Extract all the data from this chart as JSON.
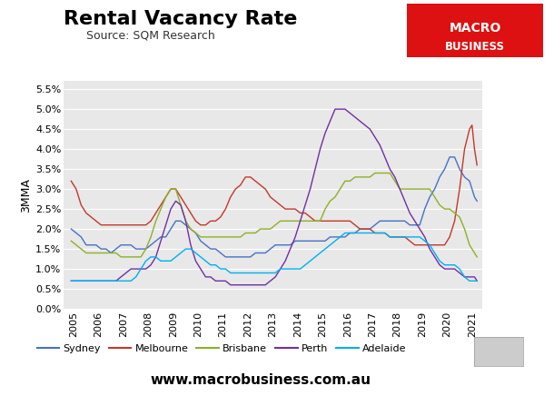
{
  "title": "Rental Vacancy Rate",
  "subtitle": "Source: SQM Research",
  "ylabel": "3MMA",
  "plot_bg": "#e8e8e8",
  "fig_bg": "#ffffff",
  "title_fontsize": 16,
  "subtitle_fontsize": 9,
  "ylabel_fontsize": 9,
  "tick_fontsize": 8,
  "website": "www.macrobusiness.com.au",
  "website_fontsize": 11,
  "colors": {
    "Sydney": "#4472c4",
    "Melbourne": "#c0392b",
    "Brisbane": "#8db026",
    "Perth": "#7030a0",
    "Adelaide": "#00b0f0"
  },
  "ylim": [
    0.0,
    0.057
  ],
  "yticks": [
    0.0,
    0.005,
    0.01,
    0.015,
    0.02,
    0.025,
    0.03,
    0.035,
    0.04,
    0.045,
    0.05,
    0.055
  ],
  "year_start": 2004.6,
  "year_end": 2021.4,
  "xticks": [
    2005,
    2006,
    2007,
    2008,
    2009,
    2010,
    2011,
    2012,
    2013,
    2014,
    2015,
    2016,
    2017,
    2018,
    2019,
    2020,
    2021
  ],
  "series": [
    "Sydney",
    "Melbourne",
    "Brisbane",
    "Perth",
    "Adelaide"
  ],
  "Sydney": [
    [
      2004.9,
      0.02
    ],
    [
      2005.1,
      0.019
    ],
    [
      2005.3,
      0.018
    ],
    [
      2005.5,
      0.016
    ],
    [
      2005.7,
      0.016
    ],
    [
      2005.9,
      0.016
    ],
    [
      2006.1,
      0.015
    ],
    [
      2006.3,
      0.015
    ],
    [
      2006.5,
      0.014
    ],
    [
      2006.7,
      0.015
    ],
    [
      2006.9,
      0.016
    ],
    [
      2007.1,
      0.016
    ],
    [
      2007.3,
      0.016
    ],
    [
      2007.5,
      0.015
    ],
    [
      2007.7,
      0.015
    ],
    [
      2007.9,
      0.015
    ],
    [
      2008.1,
      0.016
    ],
    [
      2008.3,
      0.017
    ],
    [
      2008.5,
      0.018
    ],
    [
      2008.7,
      0.018
    ],
    [
      2008.9,
      0.02
    ],
    [
      2009.1,
      0.022
    ],
    [
      2009.3,
      0.022
    ],
    [
      2009.5,
      0.021
    ],
    [
      2009.7,
      0.02
    ],
    [
      2009.9,
      0.019
    ],
    [
      2010.1,
      0.017
    ],
    [
      2010.3,
      0.016
    ],
    [
      2010.5,
      0.015
    ],
    [
      2010.7,
      0.015
    ],
    [
      2010.9,
      0.014
    ],
    [
      2011.1,
      0.013
    ],
    [
      2011.3,
      0.013
    ],
    [
      2011.5,
      0.013
    ],
    [
      2011.7,
      0.013
    ],
    [
      2011.9,
      0.013
    ],
    [
      2012.1,
      0.013
    ],
    [
      2012.3,
      0.014
    ],
    [
      2012.5,
      0.014
    ],
    [
      2012.7,
      0.014
    ],
    [
      2012.9,
      0.015
    ],
    [
      2013.1,
      0.016
    ],
    [
      2013.3,
      0.016
    ],
    [
      2013.5,
      0.016
    ],
    [
      2013.7,
      0.016
    ],
    [
      2013.9,
      0.017
    ],
    [
      2014.1,
      0.017
    ],
    [
      2014.3,
      0.017
    ],
    [
      2014.5,
      0.017
    ],
    [
      2014.7,
      0.017
    ],
    [
      2014.9,
      0.017
    ],
    [
      2015.1,
      0.017
    ],
    [
      2015.3,
      0.018
    ],
    [
      2015.5,
      0.018
    ],
    [
      2015.7,
      0.018
    ],
    [
      2015.9,
      0.018
    ],
    [
      2016.1,
      0.019
    ],
    [
      2016.3,
      0.019
    ],
    [
      2016.5,
      0.02
    ],
    [
      2016.7,
      0.02
    ],
    [
      2016.9,
      0.02
    ],
    [
      2017.1,
      0.021
    ],
    [
      2017.3,
      0.022
    ],
    [
      2017.5,
      0.022
    ],
    [
      2017.7,
      0.022
    ],
    [
      2017.9,
      0.022
    ],
    [
      2018.1,
      0.022
    ],
    [
      2018.3,
      0.022
    ],
    [
      2018.5,
      0.021
    ],
    [
      2018.7,
      0.021
    ],
    [
      2018.9,
      0.021
    ],
    [
      2019.1,
      0.025
    ],
    [
      2019.3,
      0.028
    ],
    [
      2019.5,
      0.03
    ],
    [
      2019.7,
      0.033
    ],
    [
      2019.9,
      0.035
    ],
    [
      2020.1,
      0.038
    ],
    [
      2020.3,
      0.038
    ],
    [
      2020.5,
      0.035
    ],
    [
      2020.7,
      0.033
    ],
    [
      2020.9,
      0.032
    ],
    [
      2021.0,
      0.03
    ],
    [
      2021.1,
      0.028
    ],
    [
      2021.2,
      0.027
    ]
  ],
  "Melbourne": [
    [
      2004.9,
      0.032
    ],
    [
      2005.1,
      0.03
    ],
    [
      2005.3,
      0.026
    ],
    [
      2005.5,
      0.024
    ],
    [
      2005.7,
      0.023
    ],
    [
      2005.9,
      0.022
    ],
    [
      2006.1,
      0.021
    ],
    [
      2006.3,
      0.021
    ],
    [
      2006.5,
      0.021
    ],
    [
      2006.7,
      0.021
    ],
    [
      2006.9,
      0.021
    ],
    [
      2007.1,
      0.021
    ],
    [
      2007.3,
      0.021
    ],
    [
      2007.5,
      0.021
    ],
    [
      2007.7,
      0.021
    ],
    [
      2007.9,
      0.021
    ],
    [
      2008.1,
      0.022
    ],
    [
      2008.3,
      0.024
    ],
    [
      2008.5,
      0.026
    ],
    [
      2008.7,
      0.028
    ],
    [
      2008.9,
      0.03
    ],
    [
      2009.1,
      0.03
    ],
    [
      2009.3,
      0.028
    ],
    [
      2009.5,
      0.026
    ],
    [
      2009.7,
      0.024
    ],
    [
      2009.9,
      0.022
    ],
    [
      2010.1,
      0.021
    ],
    [
      2010.3,
      0.021
    ],
    [
      2010.5,
      0.022
    ],
    [
      2010.7,
      0.022
    ],
    [
      2010.9,
      0.023
    ],
    [
      2011.1,
      0.025
    ],
    [
      2011.3,
      0.028
    ],
    [
      2011.5,
      0.03
    ],
    [
      2011.7,
      0.031
    ],
    [
      2011.9,
      0.033
    ],
    [
      2012.1,
      0.033
    ],
    [
      2012.3,
      0.032
    ],
    [
      2012.5,
      0.031
    ],
    [
      2012.7,
      0.03
    ],
    [
      2012.9,
      0.028
    ],
    [
      2013.1,
      0.027
    ],
    [
      2013.3,
      0.026
    ],
    [
      2013.5,
      0.025
    ],
    [
      2013.7,
      0.025
    ],
    [
      2013.9,
      0.025
    ],
    [
      2014.1,
      0.024
    ],
    [
      2014.3,
      0.024
    ],
    [
      2014.5,
      0.023
    ],
    [
      2014.7,
      0.022
    ],
    [
      2014.9,
      0.022
    ],
    [
      2015.1,
      0.022
    ],
    [
      2015.3,
      0.022
    ],
    [
      2015.5,
      0.022
    ],
    [
      2015.7,
      0.022
    ],
    [
      2015.9,
      0.022
    ],
    [
      2016.1,
      0.022
    ],
    [
      2016.3,
      0.021
    ],
    [
      2016.5,
      0.02
    ],
    [
      2016.7,
      0.02
    ],
    [
      2016.9,
      0.02
    ],
    [
      2017.1,
      0.019
    ],
    [
      2017.3,
      0.019
    ],
    [
      2017.5,
      0.019
    ],
    [
      2017.7,
      0.018
    ],
    [
      2017.9,
      0.018
    ],
    [
      2018.1,
      0.018
    ],
    [
      2018.3,
      0.018
    ],
    [
      2018.5,
      0.017
    ],
    [
      2018.7,
      0.016
    ],
    [
      2018.9,
      0.016
    ],
    [
      2019.1,
      0.016
    ],
    [
      2019.3,
      0.016
    ],
    [
      2019.5,
      0.016
    ],
    [
      2019.7,
      0.016
    ],
    [
      2019.9,
      0.016
    ],
    [
      2020.1,
      0.018
    ],
    [
      2020.3,
      0.022
    ],
    [
      2020.5,
      0.03
    ],
    [
      2020.7,
      0.04
    ],
    [
      2020.9,
      0.045
    ],
    [
      2021.0,
      0.046
    ],
    [
      2021.1,
      0.04
    ],
    [
      2021.2,
      0.036
    ]
  ],
  "Brisbane": [
    [
      2004.9,
      0.017
    ],
    [
      2005.1,
      0.016
    ],
    [
      2005.3,
      0.015
    ],
    [
      2005.5,
      0.014
    ],
    [
      2005.7,
      0.014
    ],
    [
      2005.9,
      0.014
    ],
    [
      2006.1,
      0.014
    ],
    [
      2006.3,
      0.014
    ],
    [
      2006.5,
      0.014
    ],
    [
      2006.7,
      0.014
    ],
    [
      2006.9,
      0.013
    ],
    [
      2007.1,
      0.013
    ],
    [
      2007.3,
      0.013
    ],
    [
      2007.5,
      0.013
    ],
    [
      2007.7,
      0.013
    ],
    [
      2007.9,
      0.015
    ],
    [
      2008.1,
      0.018
    ],
    [
      2008.3,
      0.022
    ],
    [
      2008.5,
      0.025
    ],
    [
      2008.7,
      0.028
    ],
    [
      2008.9,
      0.03
    ],
    [
      2009.1,
      0.03
    ],
    [
      2009.3,
      0.026
    ],
    [
      2009.5,
      0.022
    ],
    [
      2009.7,
      0.02
    ],
    [
      2009.9,
      0.019
    ],
    [
      2010.1,
      0.018
    ],
    [
      2010.3,
      0.018
    ],
    [
      2010.5,
      0.018
    ],
    [
      2010.7,
      0.018
    ],
    [
      2010.9,
      0.018
    ],
    [
      2011.1,
      0.018
    ],
    [
      2011.3,
      0.018
    ],
    [
      2011.5,
      0.018
    ],
    [
      2011.7,
      0.018
    ],
    [
      2011.9,
      0.019
    ],
    [
      2012.1,
      0.019
    ],
    [
      2012.3,
      0.019
    ],
    [
      2012.5,
      0.02
    ],
    [
      2012.7,
      0.02
    ],
    [
      2012.9,
      0.02
    ],
    [
      2013.1,
      0.021
    ],
    [
      2013.3,
      0.022
    ],
    [
      2013.5,
      0.022
    ],
    [
      2013.7,
      0.022
    ],
    [
      2013.9,
      0.022
    ],
    [
      2014.1,
      0.022
    ],
    [
      2014.3,
      0.022
    ],
    [
      2014.5,
      0.022
    ],
    [
      2014.7,
      0.022
    ],
    [
      2014.9,
      0.022
    ],
    [
      2015.1,
      0.025
    ],
    [
      2015.3,
      0.027
    ],
    [
      2015.5,
      0.028
    ],
    [
      2015.7,
      0.03
    ],
    [
      2015.9,
      0.032
    ],
    [
      2016.1,
      0.032
    ],
    [
      2016.3,
      0.033
    ],
    [
      2016.5,
      0.033
    ],
    [
      2016.7,
      0.033
    ],
    [
      2016.9,
      0.033
    ],
    [
      2017.1,
      0.034
    ],
    [
      2017.3,
      0.034
    ],
    [
      2017.5,
      0.034
    ],
    [
      2017.7,
      0.034
    ],
    [
      2017.9,
      0.032
    ],
    [
      2018.1,
      0.03
    ],
    [
      2018.3,
      0.03
    ],
    [
      2018.5,
      0.03
    ],
    [
      2018.7,
      0.03
    ],
    [
      2018.9,
      0.03
    ],
    [
      2019.1,
      0.03
    ],
    [
      2019.3,
      0.03
    ],
    [
      2019.5,
      0.028
    ],
    [
      2019.7,
      0.026
    ],
    [
      2019.9,
      0.025
    ],
    [
      2020.1,
      0.025
    ],
    [
      2020.3,
      0.024
    ],
    [
      2020.5,
      0.023
    ],
    [
      2020.7,
      0.02
    ],
    [
      2020.9,
      0.016
    ],
    [
      2021.0,
      0.015
    ],
    [
      2021.1,
      0.014
    ],
    [
      2021.2,
      0.013
    ]
  ],
  "Perth": [
    [
      2004.9,
      0.007
    ],
    [
      2005.1,
      0.007
    ],
    [
      2005.3,
      0.007
    ],
    [
      2005.5,
      0.007
    ],
    [
      2005.7,
      0.007
    ],
    [
      2005.9,
      0.007
    ],
    [
      2006.1,
      0.007
    ],
    [
      2006.3,
      0.007
    ],
    [
      2006.5,
      0.007
    ],
    [
      2006.7,
      0.007
    ],
    [
      2006.9,
      0.008
    ],
    [
      2007.1,
      0.009
    ],
    [
      2007.3,
      0.01
    ],
    [
      2007.5,
      0.01
    ],
    [
      2007.7,
      0.01
    ],
    [
      2007.9,
      0.01
    ],
    [
      2008.1,
      0.011
    ],
    [
      2008.3,
      0.013
    ],
    [
      2008.5,
      0.017
    ],
    [
      2008.7,
      0.021
    ],
    [
      2008.9,
      0.025
    ],
    [
      2009.1,
      0.027
    ],
    [
      2009.3,
      0.026
    ],
    [
      2009.5,
      0.022
    ],
    [
      2009.7,
      0.016
    ],
    [
      2009.9,
      0.012
    ],
    [
      2010.1,
      0.01
    ],
    [
      2010.3,
      0.008
    ],
    [
      2010.5,
      0.008
    ],
    [
      2010.7,
      0.007
    ],
    [
      2010.9,
      0.007
    ],
    [
      2011.1,
      0.007
    ],
    [
      2011.3,
      0.006
    ],
    [
      2011.5,
      0.006
    ],
    [
      2011.7,
      0.006
    ],
    [
      2011.9,
      0.006
    ],
    [
      2012.1,
      0.006
    ],
    [
      2012.3,
      0.006
    ],
    [
      2012.5,
      0.006
    ],
    [
      2012.7,
      0.006
    ],
    [
      2012.9,
      0.007
    ],
    [
      2013.1,
      0.008
    ],
    [
      2013.3,
      0.01
    ],
    [
      2013.5,
      0.012
    ],
    [
      2013.7,
      0.015
    ],
    [
      2013.9,
      0.018
    ],
    [
      2014.1,
      0.022
    ],
    [
      2014.3,
      0.026
    ],
    [
      2014.5,
      0.03
    ],
    [
      2014.7,
      0.035
    ],
    [
      2014.9,
      0.04
    ],
    [
      2015.1,
      0.044
    ],
    [
      2015.3,
      0.047
    ],
    [
      2015.5,
      0.05
    ],
    [
      2015.7,
      0.05
    ],
    [
      2015.9,
      0.05
    ],
    [
      2016.1,
      0.049
    ],
    [
      2016.3,
      0.048
    ],
    [
      2016.5,
      0.047
    ],
    [
      2016.7,
      0.046
    ],
    [
      2016.9,
      0.045
    ],
    [
      2017.1,
      0.043
    ],
    [
      2017.3,
      0.041
    ],
    [
      2017.5,
      0.038
    ],
    [
      2017.7,
      0.035
    ],
    [
      2017.9,
      0.033
    ],
    [
      2018.1,
      0.03
    ],
    [
      2018.3,
      0.027
    ],
    [
      2018.5,
      0.024
    ],
    [
      2018.7,
      0.022
    ],
    [
      2018.9,
      0.02
    ],
    [
      2019.1,
      0.018
    ],
    [
      2019.3,
      0.015
    ],
    [
      2019.5,
      0.013
    ],
    [
      2019.7,
      0.011
    ],
    [
      2019.9,
      0.01
    ],
    [
      2020.1,
      0.01
    ],
    [
      2020.3,
      0.01
    ],
    [
      2020.5,
      0.009
    ],
    [
      2020.7,
      0.008
    ],
    [
      2020.9,
      0.008
    ],
    [
      2021.0,
      0.008
    ],
    [
      2021.1,
      0.008
    ],
    [
      2021.2,
      0.007
    ]
  ],
  "Adelaide": [
    [
      2004.9,
      0.007
    ],
    [
      2005.1,
      0.007
    ],
    [
      2005.3,
      0.007
    ],
    [
      2005.5,
      0.007
    ],
    [
      2005.7,
      0.007
    ],
    [
      2005.9,
      0.007
    ],
    [
      2006.1,
      0.007
    ],
    [
      2006.3,
      0.007
    ],
    [
      2006.5,
      0.007
    ],
    [
      2006.7,
      0.007
    ],
    [
      2006.9,
      0.007
    ],
    [
      2007.1,
      0.007
    ],
    [
      2007.3,
      0.007
    ],
    [
      2007.5,
      0.008
    ],
    [
      2007.7,
      0.01
    ],
    [
      2007.9,
      0.012
    ],
    [
      2008.1,
      0.013
    ],
    [
      2008.3,
      0.013
    ],
    [
      2008.5,
      0.012
    ],
    [
      2008.7,
      0.012
    ],
    [
      2008.9,
      0.012
    ],
    [
      2009.1,
      0.013
    ],
    [
      2009.3,
      0.014
    ],
    [
      2009.5,
      0.015
    ],
    [
      2009.7,
      0.015
    ],
    [
      2009.9,
      0.014
    ],
    [
      2010.1,
      0.013
    ],
    [
      2010.3,
      0.012
    ],
    [
      2010.5,
      0.011
    ],
    [
      2010.7,
      0.011
    ],
    [
      2010.9,
      0.01
    ],
    [
      2011.1,
      0.01
    ],
    [
      2011.3,
      0.009
    ],
    [
      2011.5,
      0.009
    ],
    [
      2011.7,
      0.009
    ],
    [
      2011.9,
      0.009
    ],
    [
      2012.1,
      0.009
    ],
    [
      2012.3,
      0.009
    ],
    [
      2012.5,
      0.009
    ],
    [
      2012.7,
      0.009
    ],
    [
      2012.9,
      0.009
    ],
    [
      2013.1,
      0.009
    ],
    [
      2013.3,
      0.01
    ],
    [
      2013.5,
      0.01
    ],
    [
      2013.7,
      0.01
    ],
    [
      2013.9,
      0.01
    ],
    [
      2014.1,
      0.01
    ],
    [
      2014.3,
      0.011
    ],
    [
      2014.5,
      0.012
    ],
    [
      2014.7,
      0.013
    ],
    [
      2014.9,
      0.014
    ],
    [
      2015.1,
      0.015
    ],
    [
      2015.3,
      0.016
    ],
    [
      2015.5,
      0.017
    ],
    [
      2015.7,
      0.018
    ],
    [
      2015.9,
      0.019
    ],
    [
      2016.1,
      0.019
    ],
    [
      2016.3,
      0.019
    ],
    [
      2016.5,
      0.019
    ],
    [
      2016.7,
      0.019
    ],
    [
      2016.9,
      0.019
    ],
    [
      2017.1,
      0.019
    ],
    [
      2017.3,
      0.019
    ],
    [
      2017.5,
      0.019
    ],
    [
      2017.7,
      0.018
    ],
    [
      2017.9,
      0.018
    ],
    [
      2018.1,
      0.018
    ],
    [
      2018.3,
      0.018
    ],
    [
      2018.5,
      0.018
    ],
    [
      2018.7,
      0.018
    ],
    [
      2018.9,
      0.018
    ],
    [
      2019.1,
      0.017
    ],
    [
      2019.3,
      0.016
    ],
    [
      2019.5,
      0.014
    ],
    [
      2019.7,
      0.012
    ],
    [
      2019.9,
      0.011
    ],
    [
      2020.1,
      0.011
    ],
    [
      2020.3,
      0.011
    ],
    [
      2020.5,
      0.01
    ],
    [
      2020.7,
      0.008
    ],
    [
      2020.9,
      0.007
    ],
    [
      2021.0,
      0.007
    ],
    [
      2021.1,
      0.007
    ],
    [
      2021.2,
      0.007
    ]
  ]
}
